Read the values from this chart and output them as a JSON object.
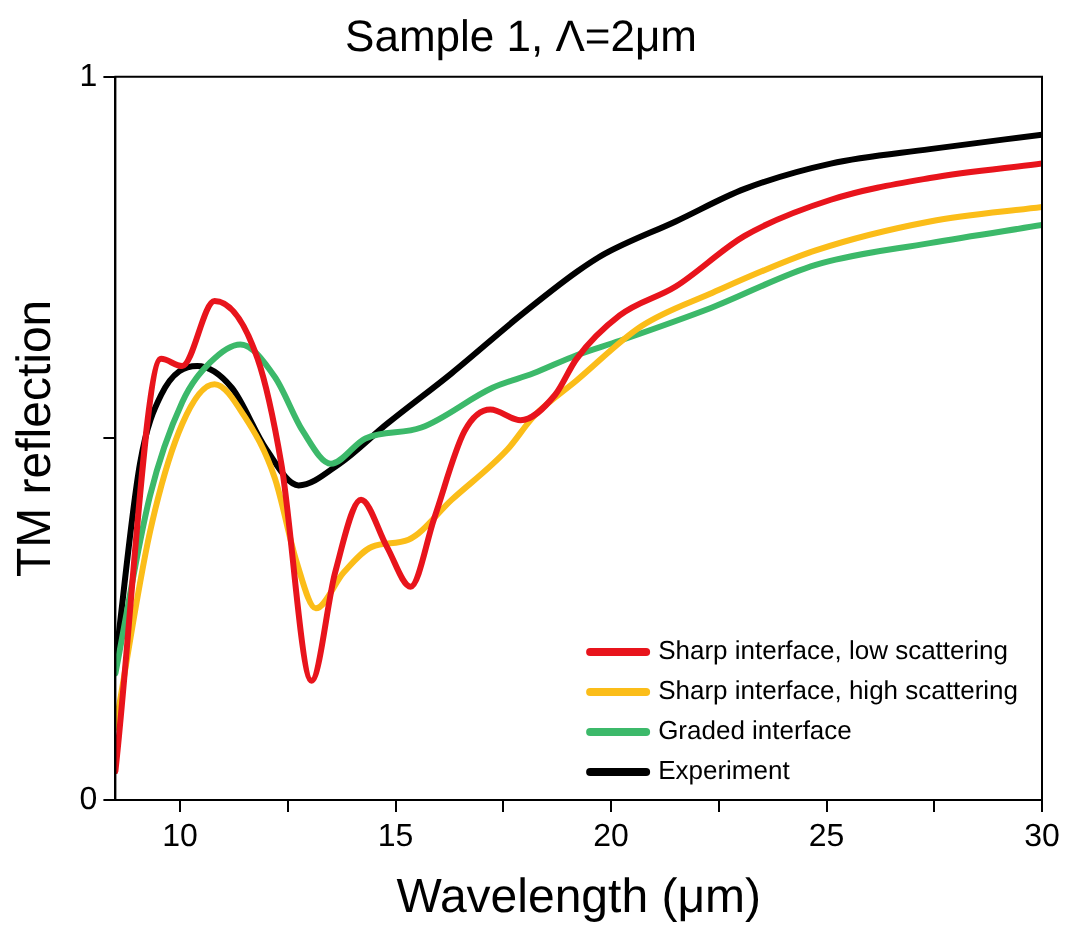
{
  "chart_data": {
    "type": "line",
    "title": "Sample 1, Λ=2μm",
    "xlabel": "Wavelength (μm)",
    "ylabel": "TM reflection",
    "xlim": [
      8.5,
      30
    ],
    "xticks": [
      10,
      {
        "value": 12.5,
        "label": null
      },
      15,
      {
        "value": 17.5,
        "label": null
      },
      20,
      {
        "value": 22.5,
        "label": null
      },
      25,
      {
        "value": 27.5,
        "label": null
      },
      30
    ],
    "ylim": [
      0,
      1
    ],
    "yticks": [
      0,
      {
        "value": 0.5,
        "label": null
      },
      1
    ],
    "grid": false,
    "legend": "bottom right",
    "marker": "none",
    "line_style": "solid",
    "series": [
      {
        "name": "Sharp interface, low scattering",
        "color": "#e8141c",
        "x": [
          8.5,
          9.56,
          10.05,
          10.8,
          11.8,
          12.35,
          13.05,
          13.6,
          14.2,
          14.8,
          15.35,
          15.9,
          16.6,
          17.2,
          17.9,
          18.7,
          19.2,
          20.2,
          21.5,
          23.1,
          25.1,
          27.4,
          30
        ],
        "values": [
          0.04,
          0.61,
          0.6,
          0.69,
          0.61,
          0.465,
          0.165,
          0.315,
          0.415,
          0.35,
          0.295,
          0.39,
          0.51,
          0.54,
          0.525,
          0.56,
          0.61,
          0.67,
          0.71,
          0.78,
          0.83,
          0.86,
          0.88
        ]
      },
      {
        "name": "Sharp interface, high scattering",
        "color": "#fbbd19",
        "x": [
          8.5,
          9.3,
          10.05,
          10.8,
          11.5,
          12.2,
          12.7,
          13.15,
          13.8,
          14.45,
          15.3,
          16.3,
          17.6,
          18.2,
          19.2,
          20.7,
          22.3,
          24.75,
          27.4,
          30
        ],
        "values": [
          0.1,
          0.37,
          0.52,
          0.575,
          0.53,
          0.445,
          0.33,
          0.265,
          0.315,
          0.35,
          0.36,
          0.415,
          0.485,
          0.53,
          0.58,
          0.655,
          0.7,
          0.76,
          0.8,
          0.82
        ]
      },
      {
        "name": "Graded interface",
        "color": "#3cb96a",
        "x": [
          8.5,
          9.3,
          10.05,
          10.7,
          11.4,
          12.2,
          12.85,
          13.5,
          14.3,
          15.6,
          17.25,
          18.2,
          19.2,
          20.2,
          22.3,
          24.75,
          27.4,
          30
        ],
        "values": [
          0.175,
          0.42,
          0.55,
          0.605,
          0.63,
          0.585,
          0.51,
          0.465,
          0.5,
          0.515,
          0.57,
          0.59,
          0.615,
          0.635,
          0.68,
          0.74,
          0.77,
          0.795
        ]
      },
      {
        "name": "Experiment",
        "color": "#000000",
        "x": [
          8.5,
          9.07,
          9.56,
          10.4,
          11.2,
          12,
          12.75,
          13.7,
          14.8,
          16.3,
          17.9,
          19.2,
          19.85,
          21.5,
          23.1,
          25.1,
          27.4,
          30
        ],
        "values": [
          0.19,
          0.465,
          0.56,
          0.6,
          0.57,
          0.485,
          0.435,
          0.465,
          0.52,
          0.59,
          0.67,
          0.73,
          0.755,
          0.8,
          0.845,
          0.88,
          0.9,
          0.92
        ]
      }
    ]
  }
}
